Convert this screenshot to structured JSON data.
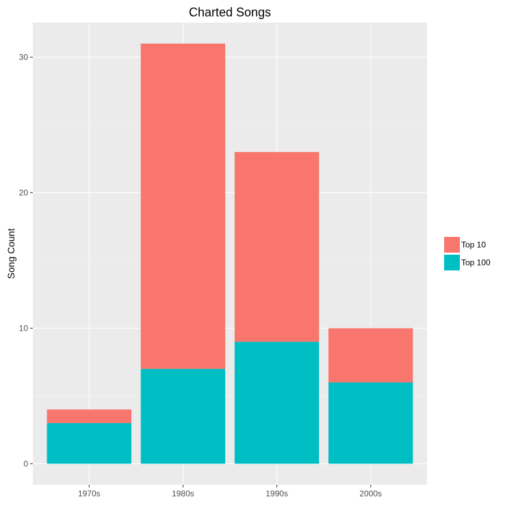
{
  "chart_data": {
    "type": "bar",
    "stacked": true,
    "title": "Charted Songs",
    "xlabel": "",
    "ylabel": "Song Count",
    "categories": [
      "1970s",
      "1980s",
      "1990s",
      "2000s"
    ],
    "series": [
      {
        "name": "Top 100",
        "color": "#00bfc4",
        "values": [
          3,
          7,
          9,
          6
        ]
      },
      {
        "name": "Top 10",
        "color": "#f8766d",
        "values": [
          1,
          24,
          14,
          4
        ]
      }
    ],
    "totals": [
      4,
      31,
      23,
      10
    ],
    "ylim": [
      -1.55,
      32.55
    ],
    "yticks": [
      0,
      10,
      20,
      30
    ],
    "grid": true,
    "legend": {
      "position": "right",
      "order": [
        "Top 10",
        "Top 100"
      ]
    },
    "colors": {
      "panel_background": "#ebebeb",
      "grid_major": "#ffffff",
      "grid_minor": "#f5f5f5"
    }
  }
}
